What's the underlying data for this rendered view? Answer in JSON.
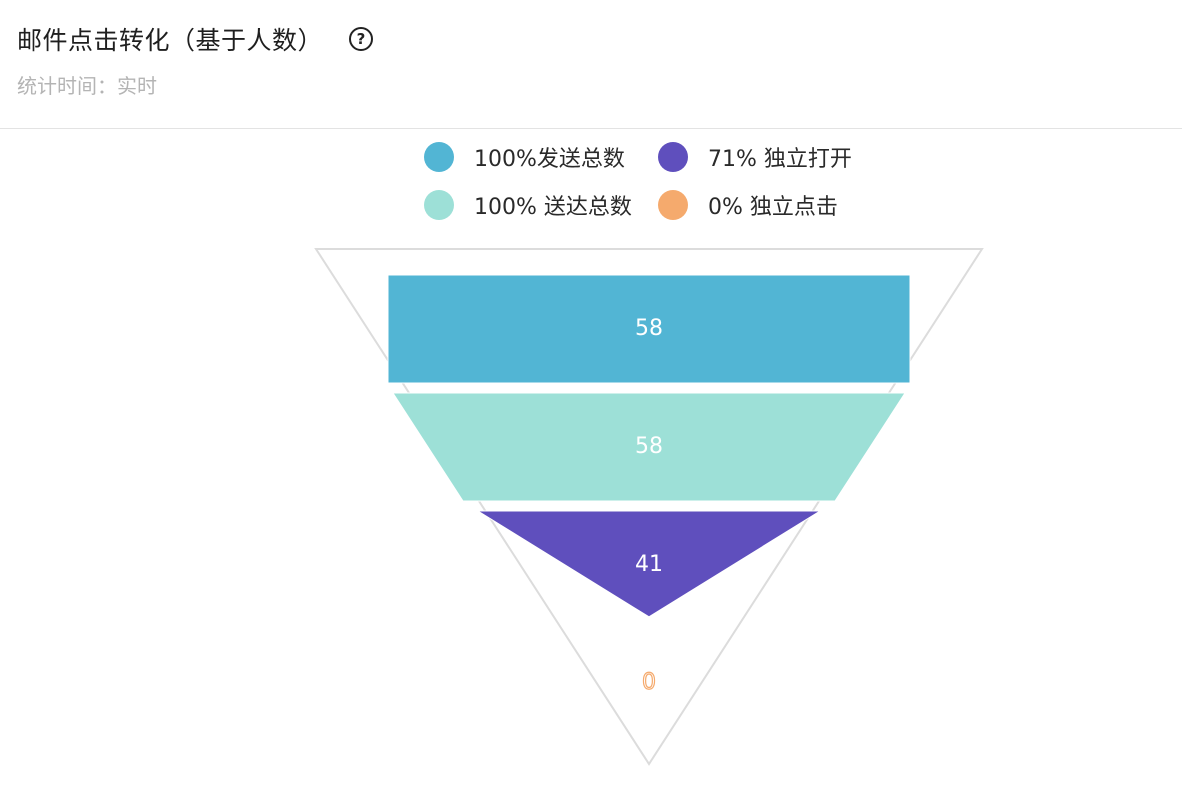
{
  "header": {
    "title": "邮件点击转化（基于人数）",
    "help_icon": "question-circle-icon",
    "subtitle": "统计时间：实时"
  },
  "legend": [
    {
      "label": "100%发送总数",
      "color": "#52b5d4"
    },
    {
      "label": "71% 独立打开",
      "color": "#5f4fbd"
    },
    {
      "label": "100% 送达总数",
      "color": "#9de0d7"
    },
    {
      "label": "0% 独立点击",
      "color": "#f5aa6d"
    }
  ],
  "chart_data": {
    "type": "funnel",
    "stages": [
      {
        "name": "发送总数",
        "value": 58,
        "percent": 100,
        "color": "#52b5d4"
      },
      {
        "name": "送达总数",
        "value": 58,
        "percent": 100,
        "color": "#9de0d7"
      },
      {
        "name": "独立打开",
        "value": 41,
        "percent": 71,
        "color": "#5f4fbd"
      },
      {
        "name": "独立点击",
        "value": 0,
        "percent": 0,
        "color": "#f5aa6d"
      }
    ],
    "outline_color": "#dcdcdc"
  }
}
